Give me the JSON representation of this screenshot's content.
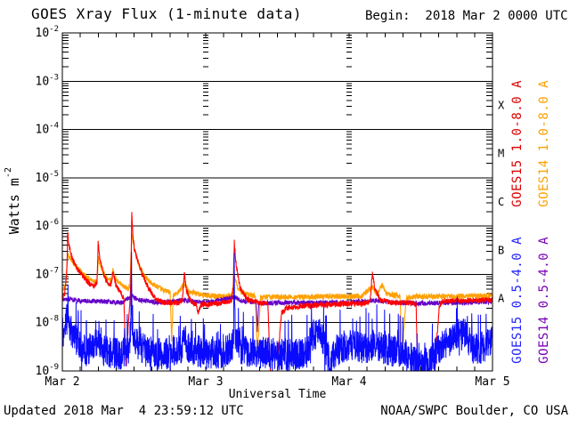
{
  "header": {
    "title": "GOES Xray Flux (1-minute data)",
    "begin_label": "Begin:  2018 Mar 2 0000 UTC"
  },
  "footer": {
    "updated_label": "Updated 2018 Mar  4 23:59:12 UTC",
    "source_label": "NOAA/SWPC Boulder, CO USA"
  },
  "axes": {
    "x_title": "Universal Time",
    "y_title_base": "Watts m",
    "y_title_exp": "-2"
  },
  "chart_data": {
    "type": "line",
    "title": "GOES Xray Flux (1-minute data)",
    "xlabel": "Universal Time",
    "ylabel": "Watts m^-2",
    "x_unit": "hours since 2018 Mar 2 0000 UTC",
    "xlim_hours": [
      0,
      72
    ],
    "ylim": [
      1e-09,
      0.01
    ],
    "y_scale": "log10",
    "y_tick_exponents": [
      -2,
      -3,
      -4,
      -5,
      -6,
      -7,
      -8,
      -9
    ],
    "grid_decades": [
      -3,
      -4,
      -5,
      -6,
      -7,
      -8
    ],
    "x_tick_labels": [
      {
        "t": 0,
        "label": "Mar 2"
      },
      {
        "t": 24,
        "label": "Mar 3"
      },
      {
        "t": 48,
        "label": "Mar 4"
      },
      {
        "t": 72,
        "label": "Mar 5"
      }
    ],
    "x_minor_tick_hours": 3,
    "day_line_hours": [
      24,
      48
    ],
    "flare_class_bands": [
      {
        "label": "X",
        "exp_mid": -3.5
      },
      {
        "label": "M",
        "exp_mid": -4.5
      },
      {
        "label": "C",
        "exp_mid": -5.5
      },
      {
        "label": "B",
        "exp_mid": -6.5
      },
      {
        "label": "A",
        "exp_mid": -7.5
      }
    ],
    "legend": [
      {
        "label": "GOES15 1.0-8.0 A",
        "color": "#dd0000"
      },
      {
        "label": "GOES14 1.0-8.0 A",
        "color": "#ffa000"
      },
      {
        "label": "GOES15 0.5-4.0 A",
        "color": "#2222ff"
      },
      {
        "label": "GOES14 0.5-4.0 A",
        "color": "#7a00b8"
      }
    ],
    "series": [
      {
        "name": "GOES14 1.0-8.0 A",
        "color": "#ffa000",
        "width": 1.1,
        "noise_dec": 0.055,
        "anchors": [
          [
            0,
            4.5e-08
          ],
          [
            0.5,
            6e-08
          ],
          [
            0.9,
            2.6e-07
          ],
          [
            1.3,
            2.2e-07
          ],
          [
            2.2,
            1.5e-07
          ],
          [
            3.2,
            1.1e-07
          ],
          [
            4.5,
            8e-08
          ],
          [
            5.8,
            7e-08
          ],
          [
            6.05,
            2.2e-07
          ],
          [
            6.4,
            1.4e-07
          ],
          [
            7.2,
            9e-08
          ],
          [
            8.2,
            7.5e-08
          ],
          [
            8.45,
            1.2e-07
          ],
          [
            9.2,
            7e-08
          ],
          [
            10.3,
            5.5e-08
          ],
          [
            11.0,
            5e-08
          ],
          [
            11.3,
            6e-08
          ],
          [
            11.65,
            7e-07
          ],
          [
            12.0,
            3.5e-07
          ],
          [
            12.8,
            1.6e-07
          ],
          [
            13.8,
            9e-08
          ],
          [
            15,
            6.5e-08
          ],
          [
            16.5,
            5e-08
          ],
          [
            18.05,
            4.2e-08
          ],
          [
            18.3,
            4e-09
          ],
          [
            18.55,
            3.8e-08
          ],
          [
            19.5,
            4.2e-08
          ],
          [
            20.4,
            6.5e-08
          ],
          [
            21.2,
            4.5e-08
          ],
          [
            23,
            3.8e-08
          ],
          [
            26,
            3.5e-08
          ],
          [
            28.4,
            3.6e-08
          ],
          [
            28.8,
            9e-08
          ],
          [
            29.4,
            5e-08
          ],
          [
            30.5,
            4e-08
          ],
          [
            32.3,
            3.5e-08
          ],
          [
            32.65,
            2e-09
          ],
          [
            33.15,
            3.3e-08
          ],
          [
            35,
            3.4e-08
          ],
          [
            40,
            3.4e-08
          ],
          [
            45,
            3.5e-08
          ],
          [
            50,
            3.5e-08
          ],
          [
            51.9,
            5.5e-08
          ],
          [
            52.6,
            4e-08
          ],
          [
            53.6,
            6e-08
          ],
          [
            54.2,
            4e-08
          ],
          [
            56.5,
            3.5e-08
          ],
          [
            56.9,
            2.5e-09
          ],
          [
            57.55,
            3.3e-08
          ],
          [
            60,
            3.5e-08
          ],
          [
            65,
            3.5e-08
          ],
          [
            70,
            3.6e-08
          ],
          [
            72,
            3.6e-08
          ]
        ]
      },
      {
        "name": "GOES14 0.5-4.0 A",
        "color": "#6400c8",
        "width": 1.0,
        "noise_dec": 0.05,
        "anchors": [
          [
            0,
            2.9e-08
          ],
          [
            1,
            3.1e-08
          ],
          [
            3,
            2.8e-08
          ],
          [
            6,
            2.8e-08
          ],
          [
            10,
            2.6e-08
          ],
          [
            11.62,
            3.6e-08
          ],
          [
            12.5,
            3e-08
          ],
          [
            16,
            2.6e-08
          ],
          [
            20.4,
            2.9e-08
          ],
          [
            24,
            2.6e-08
          ],
          [
            28.78,
            3.4e-08
          ],
          [
            30,
            2.8e-08
          ],
          [
            32.45,
            2.6e-08
          ],
          [
            32.65,
            7e-09
          ],
          [
            32.9,
            2.5e-08
          ],
          [
            36,
            2.6e-08
          ],
          [
            42,
            2.6e-08
          ],
          [
            48,
            2.6e-08
          ],
          [
            51.9,
            2.9e-08
          ],
          [
            56,
            2.6e-08
          ],
          [
            60,
            2.5e-08
          ],
          [
            66,
            2.6e-08
          ],
          [
            72,
            2.7e-08
          ]
        ]
      },
      {
        "name": "GOES15 1.0-8.0 A",
        "color": "#ff0000",
        "width": 1.1,
        "noise_dec": 0.055,
        "anchors": [
          [
            0,
            3.2e-08
          ],
          [
            0.4,
            4e-08
          ],
          [
            0.75,
            1.2e-07
          ],
          [
            0.9,
            7e-07
          ],
          [
            1.1,
            4e-07
          ],
          [
            1.6,
            2.2e-07
          ],
          [
            2.5,
            1.3e-07
          ],
          [
            3.0,
            1.1e-07
          ],
          [
            4.0,
            7.5e-08
          ],
          [
            5.2,
            5.5e-08
          ],
          [
            5.8,
            7e-08
          ],
          [
            6.0,
            4.5e-07
          ],
          [
            6.3,
            2e-07
          ],
          [
            7.0,
            9e-08
          ],
          [
            7.8,
            6e-08
          ],
          [
            8.2,
            6.5e-08
          ],
          [
            8.45,
            1.1e-07
          ],
          [
            9.0,
            6e-08
          ],
          [
            9.8,
            4e-08
          ],
          [
            10.3,
            3.2e-08
          ],
          [
            10.5,
            4e-09
          ],
          [
            10.7,
            1.2e-09
          ],
          [
            11.0,
            8e-09
          ],
          [
            11.3,
            2.5e-08
          ],
          [
            11.45,
            6e-08
          ],
          [
            11.62,
            1.8e-06
          ],
          [
            11.85,
            5e-07
          ],
          [
            12.2,
            2.8e-07
          ],
          [
            13.4,
            1e-07
          ],
          [
            14.5,
            5e-08
          ],
          [
            15.7,
            3e-08
          ],
          [
            17,
            2.6e-08
          ],
          [
            19.5,
            2.6e-08
          ],
          [
            20.1,
            3e-08
          ],
          [
            20.42,
            1.05e-07
          ],
          [
            20.8,
            4.5e-08
          ],
          [
            21.5,
            2.8e-08
          ],
          [
            22.4,
            2.4e-08
          ],
          [
            22.75,
            1.5e-08
          ],
          [
            23.2,
            2.4e-08
          ],
          [
            26,
            2.5e-08
          ],
          [
            28.3,
            2.8e-08
          ],
          [
            28.62,
            6e-08
          ],
          [
            28.78,
            4.6e-07
          ],
          [
            29.1,
            1.5e-07
          ],
          [
            29.8,
            5e-08
          ],
          [
            31,
            3e-08
          ],
          [
            33,
            2.6e-08
          ],
          [
            34.4,
            2.6e-08
          ],
          [
            34.75,
            1.5e-09
          ],
          [
            34.95,
            3e-10
          ],
          [
            35.9,
            3e-10
          ],
          [
            36.2,
            3e-09
          ],
          [
            36.7,
            1.6e-08
          ],
          [
            37.5,
            2e-08
          ],
          [
            40,
            2.2e-08
          ],
          [
            45,
            2.4e-08
          ],
          [
            50,
            2.5e-08
          ],
          [
            51.5,
            2.7e-08
          ],
          [
            51.9,
            1.15e-07
          ],
          [
            52.3,
            5e-08
          ],
          [
            53.2,
            3e-08
          ],
          [
            55,
            2.6e-08
          ],
          [
            58,
            2.6e-08
          ],
          [
            59.2,
            2.4e-08
          ],
          [
            59.45,
            1.2e-09
          ],
          [
            59.6,
            4e-10
          ],
          [
            62.2,
            4e-10
          ],
          [
            62.7,
            5e-09
          ],
          [
            63.1,
            2.2e-08
          ],
          [
            63.6,
            2.8e-08
          ],
          [
            66,
            2.8e-08
          ],
          [
            69,
            2.9e-08
          ],
          [
            72,
            3e-08
          ]
        ]
      },
      {
        "name": "GOES15 0.5-4.0 A",
        "color": "#0a0aff",
        "width": 1.0,
        "noise_dec": 0.33,
        "spike_prob": 0.05,
        "spike_dec": 0.5,
        "anchors": [
          [
            0,
            6e-09
          ],
          [
            0.5,
            9e-09
          ],
          [
            0.9,
            1.4e-08
          ],
          [
            1.4,
            7e-09
          ],
          [
            2.5,
            4e-09
          ],
          [
            4,
            2.6e-09
          ],
          [
            5.7,
            3.5e-09
          ],
          [
            6.1,
            4.5e-09
          ],
          [
            7,
            2.6e-09
          ],
          [
            9.5,
            2.2e-09
          ],
          [
            11.3,
            3e-09
          ],
          [
            11.5,
            2e-08
          ],
          [
            11.58,
            1.4e-07
          ],
          [
            11.7,
            8e-09
          ],
          [
            12.5,
            3.5e-09
          ],
          [
            14,
            2.6e-09
          ],
          [
            17,
            2.2e-09
          ],
          [
            20.1,
            3e-09
          ],
          [
            20.45,
            7e-09
          ],
          [
            21,
            3e-09
          ],
          [
            24,
            2.3e-09
          ],
          [
            27,
            2.3e-09
          ],
          [
            28.65,
            3.5e-09
          ],
          [
            28.76,
            1.5e-07
          ],
          [
            28.95,
            6e-09
          ],
          [
            29.6,
            3e-09
          ],
          [
            31,
            2.4e-09
          ],
          [
            34,
            2.4e-09
          ],
          [
            36,
            2.2e-09
          ],
          [
            38,
            2.2e-09
          ],
          [
            41,
            2.4e-09
          ],
          [
            41.8,
            5.5e-09
          ],
          [
            43.3,
            6.5e-09
          ],
          [
            44.2,
            2.5e-09
          ],
          [
            44.9,
            1.4e-09
          ],
          [
            45.8,
            2.6e-09
          ],
          [
            47,
            3.2e-09
          ],
          [
            48.5,
            3.5e-09
          ],
          [
            50,
            3e-09
          ],
          [
            51.8,
            3.2e-09
          ],
          [
            52.2,
            4e-09
          ],
          [
            53.5,
            3e-09
          ],
          [
            55.5,
            2.6e-09
          ],
          [
            57.5,
            2.2e-09
          ],
          [
            58.8,
            1.6e-09
          ],
          [
            60.5,
            1.4e-09
          ],
          [
            61.8,
            1.6e-09
          ],
          [
            62.6,
            2.6e-09
          ],
          [
            64,
            3.5e-09
          ],
          [
            65.5,
            5e-09
          ],
          [
            66.8,
            6.5e-09
          ],
          [
            67.6,
            5.5e-09
          ],
          [
            68.6,
            3e-09
          ],
          [
            70,
            3e-09
          ],
          [
            71,
            3.5e-09
          ],
          [
            72,
            4e-09
          ]
        ]
      }
    ]
  }
}
